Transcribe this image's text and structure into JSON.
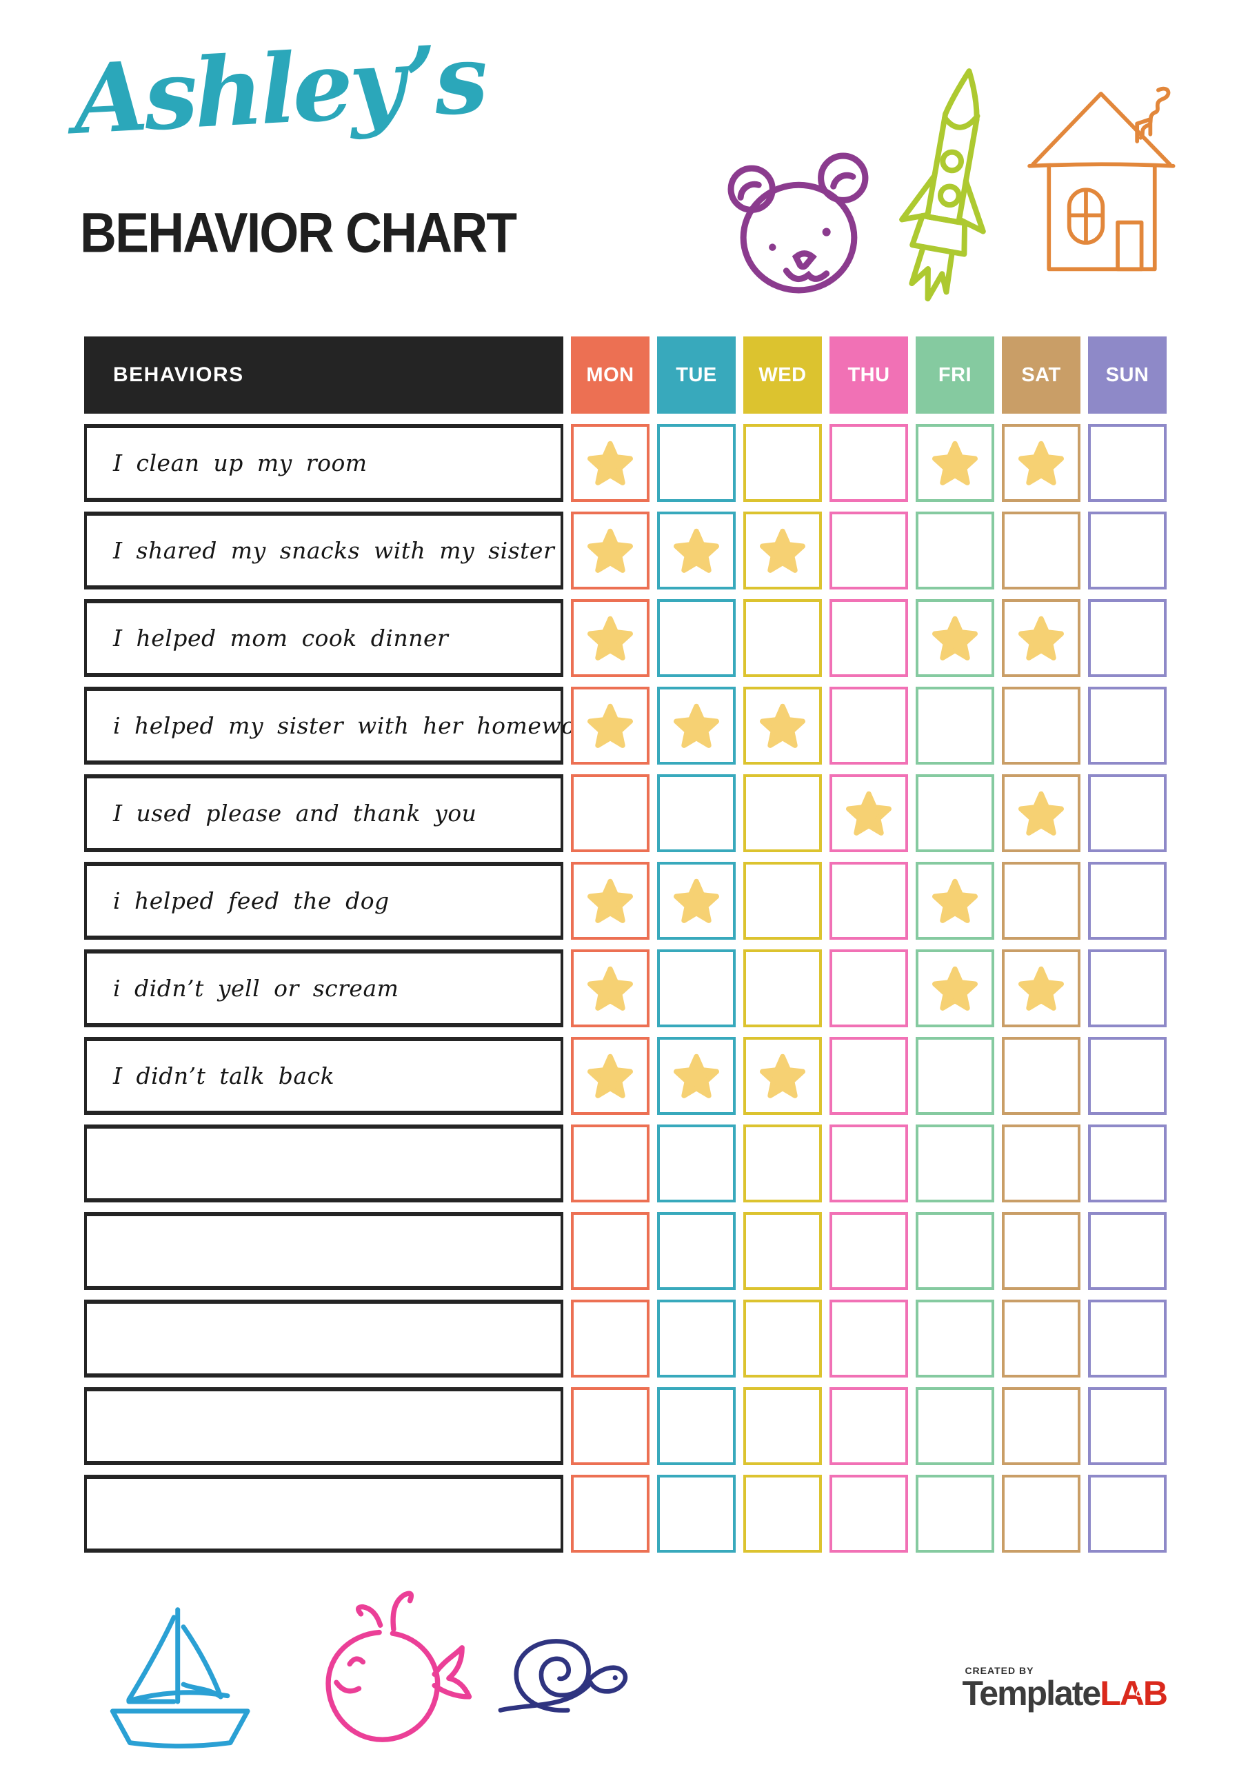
{
  "header": {
    "owner_name": "Ashley’s",
    "title": "BEHAVIOR CHART"
  },
  "table": {
    "behaviors_header": "BEHAVIORS",
    "days": [
      {
        "id": "mon",
        "label": "MON",
        "color": "#ec7053"
      },
      {
        "id": "tue",
        "label": "TUE",
        "color": "#38a9bc"
      },
      {
        "id": "wed",
        "label": "WED",
        "color": "#dcc32f"
      },
      {
        "id": "thu",
        "label": "THU",
        "color": "#f171b5"
      },
      {
        "id": "fri",
        "label": "FRI",
        "color": "#85caa0"
      },
      {
        "id": "sat",
        "label": "SAT",
        "color": "#c99e67"
      },
      {
        "id": "sun",
        "label": "SUN",
        "color": "#8e89c8"
      }
    ],
    "rows": [
      {
        "label": "I clean up my room",
        "stars": [
          "mon",
          "fri",
          "sat"
        ]
      },
      {
        "label": "I shared my snacks with my sister",
        "stars": [
          "mon",
          "tue",
          "wed"
        ]
      },
      {
        "label": "I helped mom cook dinner",
        "stars": [
          "mon",
          "fri",
          "sat"
        ]
      },
      {
        "label": "i helped my sister with her homework",
        "stars": [
          "mon",
          "tue",
          "wed"
        ]
      },
      {
        "label": "I used please and thank you",
        "stars": [
          "thu",
          "sat"
        ]
      },
      {
        "label": "i helped feed the dog",
        "stars": [
          "mon",
          "tue",
          "fri"
        ]
      },
      {
        "label": "i didn’t yell or scream",
        "stars": [
          "mon",
          "fri",
          "sat"
        ]
      },
      {
        "label": "I didn’t talk back",
        "stars": [
          "mon",
          "tue",
          "wed"
        ]
      },
      {
        "label": "",
        "stars": []
      },
      {
        "label": "",
        "stars": []
      },
      {
        "label": "",
        "stars": []
      },
      {
        "label": "",
        "stars": []
      },
      {
        "label": "",
        "stars": []
      }
    ]
  },
  "footer": {
    "credit_prefix": "CREATED BY",
    "brand_name": "Template",
    "brand_suffix": "LAB"
  },
  "icons": {
    "top_doodles": [
      "bear-icon",
      "rocket-icon",
      "house-icon"
    ],
    "bottom_doodles": [
      "sailboat-icon",
      "whale-icon",
      "snail-icon"
    ],
    "cell_marker": "star-icon",
    "logo_glyph": "flask-icon"
  },
  "colors": {
    "title_script": "#2ba7ba",
    "title_main": "#1f1f1f",
    "row_border": "#242424",
    "star": "#f6d173",
    "bear": "#8b3b8e",
    "rocket": "#adc930",
    "house": "#e2873b",
    "boat": "#2aa0d4",
    "whale": "#eb3f97",
    "snail": "#2f3480",
    "logo_dark": "#3c3c3c",
    "logo_red": "#da291c"
  }
}
